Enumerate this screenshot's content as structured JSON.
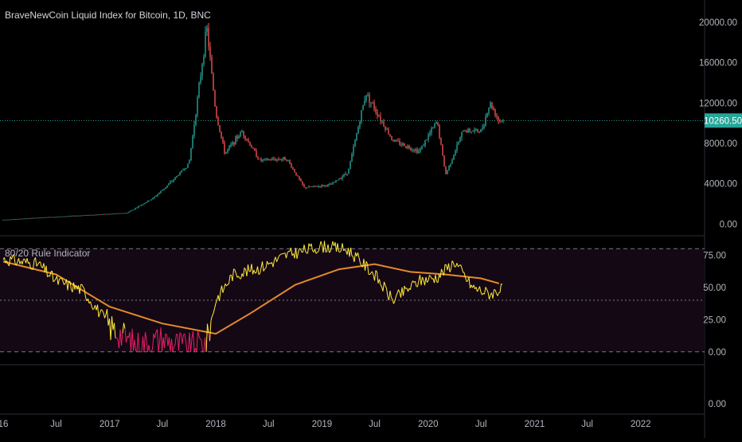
{
  "chart_data": [
    {
      "type": "candlestick",
      "title": "BraveNewCoin Liquid Index for Bitcoin, 1D, BNC",
      "price_scale_ticks": [
        "20000.00",
        "16000.00",
        "12000.00",
        "8000.00",
        "4000.00",
        "0.00"
      ],
      "tick_values": [
        20000,
        16000,
        12000,
        8000,
        4000,
        0
      ],
      "ylim": [
        -1150,
        22200
      ],
      "last_price_label": "10260.50",
      "last_price": 10260.5,
      "colors": {
        "up": "#26a69a",
        "down": "#ef5350",
        "last_price_bg": "#26a69a"
      },
      "approx_close_path": [
        {
          "date": "2016-01",
          "close": 430
        },
        {
          "date": "2016-06",
          "close": 680
        },
        {
          "date": "2016-12",
          "close": 960
        },
        {
          "date": "2017-03",
          "close": 1100
        },
        {
          "date": "2017-06",
          "close": 2600
        },
        {
          "date": "2017-08",
          "close": 4200
        },
        {
          "date": "2017-10",
          "close": 6000
        },
        {
          "date": "2017-12",
          "close": 19500
        },
        {
          "date": "2018-01",
          "close": 11000
        },
        {
          "date": "2018-02",
          "close": 7000
        },
        {
          "date": "2018-04",
          "close": 9200
        },
        {
          "date": "2018-06",
          "close": 6300
        },
        {
          "date": "2018-09",
          "close": 6500
        },
        {
          "date": "2018-11",
          "close": 3600
        },
        {
          "date": "2019-02",
          "close": 3900
        },
        {
          "date": "2019-04",
          "close": 5200
        },
        {
          "date": "2019-06",
          "close": 13000
        },
        {
          "date": "2019-09",
          "close": 8300
        },
        {
          "date": "2019-12",
          "close": 7200
        },
        {
          "date": "2020-02",
          "close": 10200
        },
        {
          "date": "2020-03",
          "close": 4900
        },
        {
          "date": "2020-05",
          "close": 9300
        },
        {
          "date": "2020-07",
          "close": 9200
        },
        {
          "date": "2020-08",
          "close": 12000
        },
        {
          "date": "2020-09",
          "close": 10260
        }
      ]
    },
    {
      "type": "line",
      "title": "80/20 Rule Indicator",
      "price_scale_ticks": [
        "75.00",
        "50.00",
        "25.00",
        "0.00"
      ],
      "tick_values": [
        75,
        50,
        25,
        0
      ],
      "ylim": [
        -10,
        90
      ],
      "bands": {
        "upper": 80,
        "middle": 40,
        "lower": 0
      },
      "series": [
        {
          "color": "#ffeb3b",
          "points": [
            {
              "date": "2016-01",
              "value": 72
            },
            {
              "date": "2016-05",
              "value": 68
            },
            {
              "date": "2016-07",
              "value": 55
            },
            {
              "date": "2016-10",
              "value": 48
            },
            {
              "date": "2017-01",
              "value": 20
            },
            {
              "date": "2017-04",
              "value": 5
            },
            {
              "date": "2017-07",
              "value": 10
            },
            {
              "date": "2017-10",
              "value": 3
            },
            {
              "date": "2017-12",
              "value": 8
            },
            {
              "date": "2018-01",
              "value": 40
            },
            {
              "date": "2018-03",
              "value": 60
            },
            {
              "date": "2018-06",
              "value": 65
            },
            {
              "date": "2018-09",
              "value": 75
            },
            {
              "date": "2019-01",
              "value": 82
            },
            {
              "date": "2019-04",
              "value": 79
            },
            {
              "date": "2019-07",
              "value": 60
            },
            {
              "date": "2019-09",
              "value": 40
            },
            {
              "date": "2019-12",
              "value": 55
            },
            {
              "date": "2020-02",
              "value": 58
            },
            {
              "date": "2020-04",
              "value": 70
            },
            {
              "date": "2020-06",
              "value": 50
            },
            {
              "date": "2020-08",
              "value": 45
            },
            {
              "date": "2020-09",
              "value": 48
            }
          ]
        },
        {
          "color": "#e58a2a",
          "points": [
            {
              "date": "2016-01",
              "value": 70
            },
            {
              "date": "2016-07",
              "value": 60
            },
            {
              "date": "2017-01",
              "value": 35
            },
            {
              "date": "2017-07",
              "value": 22
            },
            {
              "date": "2018-01",
              "value": 14
            },
            {
              "date": "2018-05",
              "value": 30
            },
            {
              "date": "2018-10",
              "value": 52
            },
            {
              "date": "2019-03",
              "value": 64
            },
            {
              "date": "2019-07",
              "value": 68
            },
            {
              "date": "2019-11",
              "value": 62
            },
            {
              "date": "2020-03",
              "value": 60
            },
            {
              "date": "2020-07",
              "value": 57
            },
            {
              "date": "2020-09",
              "value": 53
            }
          ]
        }
      ],
      "colors": {
        "low_zone": "#e91e63",
        "band_fill": "#1a0a20",
        "band_line": "#787b86"
      }
    },
    {
      "type": "empty",
      "price_scale_ticks": [
        "0.00"
      ]
    }
  ],
  "time_axis": {
    "labels": [
      {
        "date": "2016-01",
        "text": "16"
      },
      {
        "date": "2016-07",
        "text": "Jul"
      },
      {
        "date": "2017-01",
        "text": "2017"
      },
      {
        "date": "2017-07",
        "text": "Jul"
      },
      {
        "date": "2018-01",
        "text": "2018"
      },
      {
        "date": "2018-07",
        "text": "Jul"
      },
      {
        "date": "2019-01",
        "text": "2019"
      },
      {
        "date": "2019-07",
        "text": "Jul"
      },
      {
        "date": "2020-01",
        "text": "2020"
      },
      {
        "date": "2020-07",
        "text": "Jul"
      },
      {
        "date": "2021-01",
        "text": "2021"
      },
      {
        "date": "2021-07",
        "text": "Jul"
      },
      {
        "date": "2022-01",
        "text": "2022"
      }
    ]
  }
}
